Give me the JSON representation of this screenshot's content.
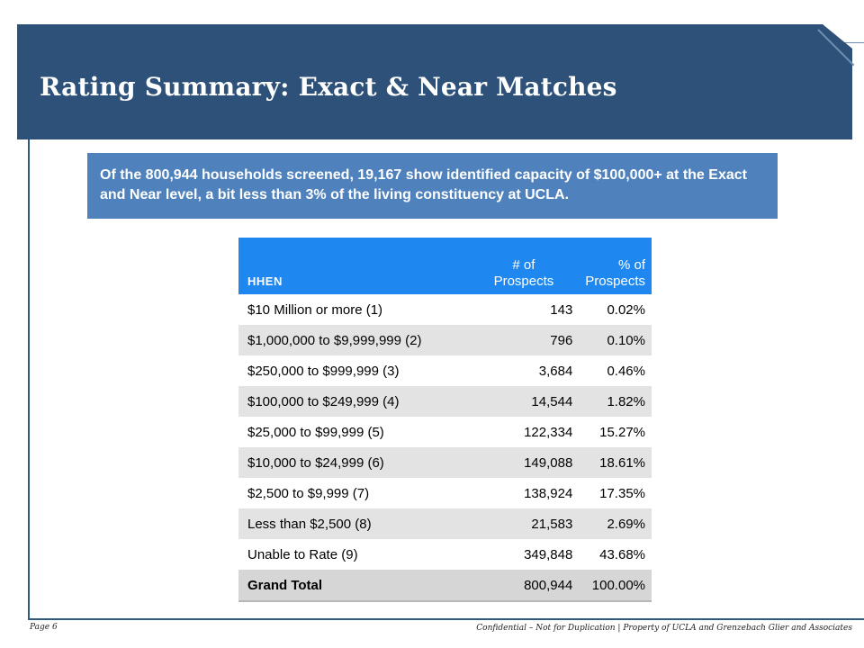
{
  "slide": {
    "title": "Rating Summary: Exact & Near Matches",
    "callout": "Of the 800,944 households screened, 19,167 show identified capacity of $100,000+ at the Exact and Near level, a bit less than 3% of the living constituency at UCLA."
  },
  "table": {
    "headers": {
      "name": "HHEN",
      "count_line1": "# of",
      "count_line2": "Prospects",
      "pct_line1": "% of",
      "pct_line2": "Prospects"
    },
    "rows": [
      {
        "label": "$10 Million or more (1)",
        "count": "143",
        "pct": "0.02%"
      },
      {
        "label": "$1,000,000 to $9,999,999 (2)",
        "count": "796",
        "pct": "0.10%"
      },
      {
        "label": "$250,000 to $999,999 (3)",
        "count": "3,684",
        "pct": "0.46%"
      },
      {
        "label": "$100,000 to $249,999 (4)",
        "count": "14,544",
        "pct": "1.82%"
      },
      {
        "label": "$25,000 to $99,999 (5)",
        "count": "122,334",
        "pct": "15.27%"
      },
      {
        "label": "$10,000 to $24,999 (6)",
        "count": "149,088",
        "pct": "18.61%"
      },
      {
        "label": "$2,500 to $9,999 (7)",
        "count": "138,924",
        "pct": "17.35%"
      },
      {
        "label": "Less than $2,500 (8)",
        "count": "21,583",
        "pct": "2.69%"
      },
      {
        "label": "Unable to Rate (9)",
        "count": "349,848",
        "pct": "43.68%"
      }
    ],
    "total": {
      "label": "Grand Total",
      "count": "800,944",
      "pct": "100.00%"
    }
  },
  "footer": {
    "page": "Page 6",
    "confidential": "Confidential – Not for Duplication | Property of UCLA and Grenzebach Glier and Associates"
  },
  "colors": {
    "banner": "#2d5178",
    "callout": "#4f81bd",
    "table_header": "#1e88f0"
  }
}
